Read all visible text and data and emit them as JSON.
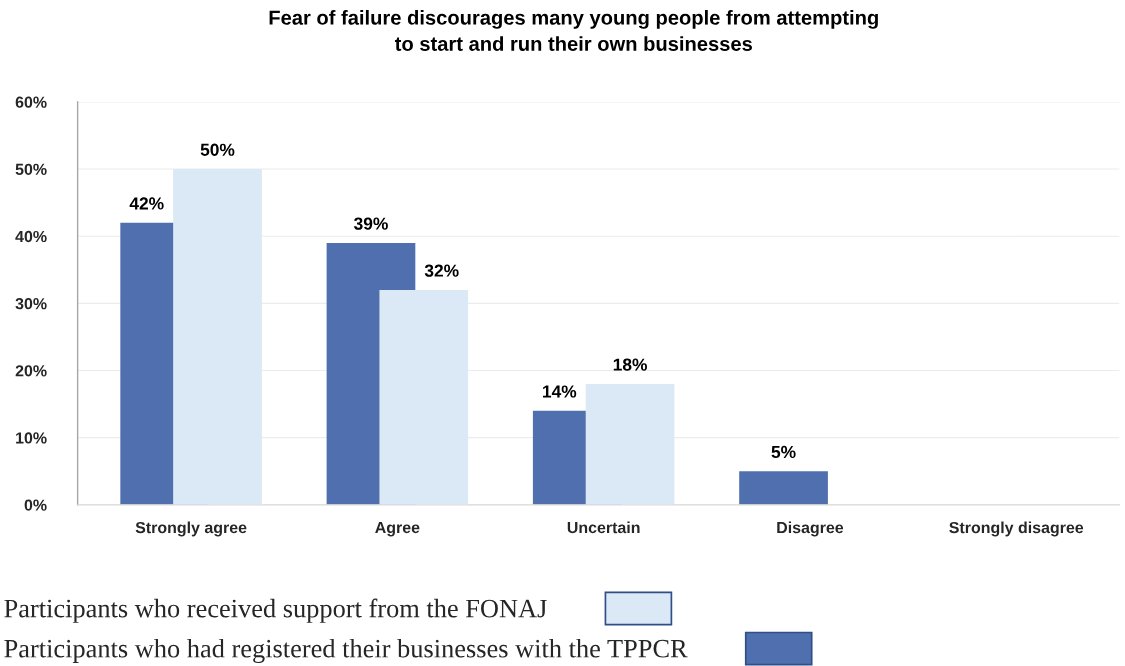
{
  "chart_data": {
    "type": "bar",
    "title": "Fear of failure discourages many young people from attempting\nto start and run their own businesses",
    "categories": [
      "Strongly agree",
      "Agree",
      "Uncertain",
      "Disagree",
      "Strongly disagree"
    ],
    "series": [
      {
        "name": "Participants who had registered their businesses with the TPPCR",
        "color": "#4f6fae",
        "values": [
          42,
          39,
          14,
          5,
          null
        ],
        "value_labels": [
          "42%",
          "39%",
          "14%",
          "5%",
          null
        ]
      },
      {
        "name": "Participants who received support from the FONAJ",
        "color": "#dbe8f6",
        "values": [
          50,
          32,
          18,
          null,
          null
        ],
        "value_labels": [
          "50%",
          "32%",
          "18%",
          null,
          null
        ]
      }
    ],
    "ylim": [
      0,
      60
    ],
    "yticks": [
      {
        "value": 0,
        "label": "0%"
      },
      {
        "value": 10,
        "label": "10%"
      },
      {
        "value": 20,
        "label": "20%"
      },
      {
        "value": 30,
        "label": "30%"
      },
      {
        "value": 40,
        "label": "40%"
      },
      {
        "value": 50,
        "label": "50%"
      },
      {
        "value": 60,
        "label": "60%"
      }
    ],
    "grid": "y",
    "legend": "bottom"
  }
}
